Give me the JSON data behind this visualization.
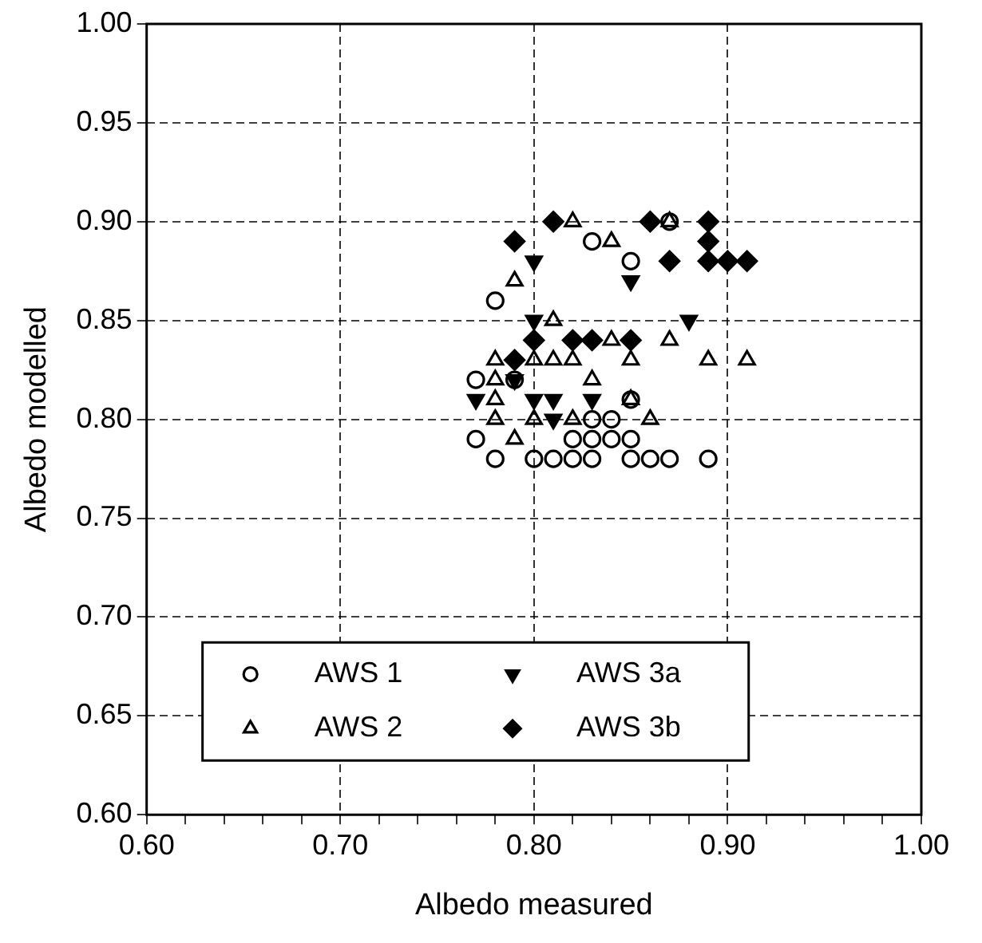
{
  "chart_data": {
    "type": "scatter",
    "xlabel": "Albedo measured",
    "ylabel": "Albedo modelled",
    "xlim": [
      0.6,
      1.0
    ],
    "ylim": [
      0.6,
      1.0
    ],
    "xticks": [
      {
        "value": 0.6,
        "label": "0.60"
      },
      {
        "value": 0.62,
        "label": null
      },
      {
        "value": 0.64,
        "label": null
      },
      {
        "value": 0.66,
        "label": null
      },
      {
        "value": 0.68,
        "label": null
      },
      {
        "value": 0.7,
        "label": "0.70"
      },
      {
        "value": 0.72,
        "label": null
      },
      {
        "value": 0.74,
        "label": null
      },
      {
        "value": 0.76,
        "label": null
      },
      {
        "value": 0.78,
        "label": null
      },
      {
        "value": 0.8,
        "label": "0.80"
      },
      {
        "value": 0.82,
        "label": null
      },
      {
        "value": 0.84,
        "label": null
      },
      {
        "value": 0.86,
        "label": null
      },
      {
        "value": 0.88,
        "label": null
      },
      {
        "value": 0.9,
        "label": "0.90"
      },
      {
        "value": 0.92,
        "label": null
      },
      {
        "value": 0.94,
        "label": null
      },
      {
        "value": 0.96,
        "label": null
      },
      {
        "value": 0.98,
        "label": null
      },
      {
        "value": 1.0,
        "label": "1.00"
      }
    ],
    "yticks": [
      {
        "value": 0.6,
        "label": "0.60"
      },
      {
        "value": 0.65,
        "label": "0.65"
      },
      {
        "value": 0.7,
        "label": "0.70"
      },
      {
        "value": 0.75,
        "label": "0.75"
      },
      {
        "value": 0.8,
        "label": "0.80"
      },
      {
        "value": 0.85,
        "label": "0.85"
      },
      {
        "value": 0.9,
        "label": "0.90"
      },
      {
        "value": 0.95,
        "label": "0.95"
      },
      {
        "value": 1.0,
        "label": "1.00"
      }
    ],
    "grid": true,
    "legend": "bottom",
    "series": [
      {
        "name": "AWS 1",
        "color": "#000000",
        "marker": "circle",
        "x": [
          0.87,
          0.83,
          0.85,
          0.78,
          0.77,
          0.79,
          0.85,
          0.83,
          0.84,
          0.77,
          0.82,
          0.83,
          0.84,
          0.85,
          0.78,
          0.8,
          0.81,
          0.82,
          0.83,
          0.85,
          0.86,
          0.87,
          0.89
        ],
        "values": [
          0.9,
          0.89,
          0.88,
          0.86,
          0.82,
          0.82,
          0.81,
          0.8,
          0.8,
          0.79,
          0.79,
          0.79,
          0.79,
          0.79,
          0.78,
          0.78,
          0.78,
          0.78,
          0.78,
          0.78,
          0.78,
          0.78,
          0.78
        ]
      },
      {
        "name": "AWS 2",
        "color": "#000000",
        "marker": "triangle",
        "x": [
          0.82,
          0.87,
          0.84,
          0.79,
          0.81,
          0.84,
          0.87,
          0.78,
          0.8,
          0.81,
          0.82,
          0.85,
          0.89,
          0.91,
          0.78,
          0.83,
          0.78,
          0.85,
          0.78,
          0.8,
          0.82,
          0.86,
          0.79
        ],
        "values": [
          0.9,
          0.9,
          0.89,
          0.87,
          0.85,
          0.84,
          0.84,
          0.83,
          0.83,
          0.83,
          0.83,
          0.83,
          0.83,
          0.83,
          0.82,
          0.82,
          0.81,
          0.81,
          0.8,
          0.8,
          0.8,
          0.8,
          0.79
        ]
      },
      {
        "name": "AWS 3a",
        "color": "#000000",
        "marker": "triangle_down",
        "x": [
          0.8,
          0.85,
          0.8,
          0.88,
          0.79,
          0.77,
          0.8,
          0.81,
          0.83,
          0.81
        ],
        "values": [
          0.88,
          0.87,
          0.85,
          0.85,
          0.82,
          0.81,
          0.81,
          0.81,
          0.81,
          0.8
        ]
      },
      {
        "name": "AWS 3b",
        "color": "#000000",
        "marker": "diamond",
        "x": [
          0.81,
          0.86,
          0.89,
          0.79,
          0.89,
          0.87,
          0.89,
          0.9,
          0.91,
          0.8,
          0.82,
          0.83,
          0.85,
          0.79
        ],
        "values": [
          0.9,
          0.9,
          0.9,
          0.89,
          0.89,
          0.88,
          0.88,
          0.88,
          0.88,
          0.84,
          0.84,
          0.84,
          0.84,
          0.83
        ]
      }
    ]
  }
}
